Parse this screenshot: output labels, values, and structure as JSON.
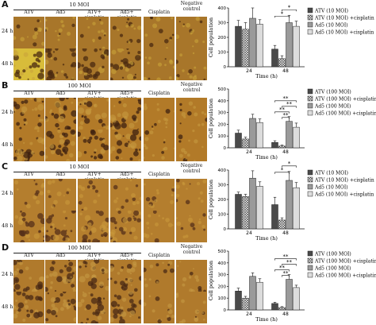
{
  "columns": [
    "ATV",
    "Ad5",
    "ATV+ cisplatin",
    "Ad5+ cisplatin",
    "Cisplatin",
    "Negative control"
  ],
  "rows": [
    "24 h",
    "48 h"
  ],
  "panels": [
    {
      "letter": "A",
      "moi": "10 MOI",
      "tone": {
        "bg": "#a8762a",
        "dark": "#4a2a10",
        "alt": "#c9a43a"
      },
      "chart_legend": [
        "ATV (10 MOI)",
        "ATV (10 MOI) +cisplatin",
        "Ad5 (10 MOI)",
        "Ad5 (10 MOI) +cisplatin"
      ]
    },
    {
      "letter": "B",
      "moi": "100 MOI",
      "tone": {
        "bg": "#b27a28",
        "dark": "#3e2210",
        "alt": "#c79a40"
      },
      "chart_legend": [
        "ATV (100 MOI)",
        "ATV (100 MOI) +cisplatin",
        "Ad5 (100 MOI)",
        "Ad5 (100 MOI) +cisplatin"
      ]
    },
    {
      "letter": "C",
      "moi": "10 MOI",
      "tone": {
        "bg": "#b47e2e",
        "dark": "#55301a",
        "alt": "#c99a3c"
      },
      "chart_legend": [
        "ATV (10 MOI)",
        "ATV (10 MOI) +cisplatin",
        "Ad5 (10 MOI)",
        "Ad5 (10 MOI) +cisplatin"
      ]
    },
    {
      "letter": "D",
      "moi": "100 MOI",
      "tone": {
        "bg": "#b07a2c",
        "dark": "#4a2a14",
        "alt": "#c69a44"
      },
      "chart_legend": [
        "ATV (100 MOI)",
        "ATV (100 MOI) +cisplatin",
        "Ad5 (100 MOI)",
        "Ad5 (100 MOI) +cisplatin"
      ]
    }
  ],
  "chart_data": [
    {
      "type": "bar",
      "categories": [
        "24",
        "48"
      ],
      "xlabel": "Time (h)",
      "ylabel": "Cell population",
      "ylim": [
        0,
        400
      ],
      "yticks": [
        0,
        100,
        200,
        300,
        400
      ],
      "series": [
        {
          "name": "ATV (10 MOI)",
          "values": [
            275,
            120
          ]
        },
        {
          "name": "ATV (10 MOI) +cisplatin",
          "values": [
            255,
            55
          ]
        },
        {
          "name": "Ad5 (10 MOI)",
          "values": [
            330,
            300
          ]
        },
        {
          "name": "Ad5 (10 MOI) +cisplatin",
          "values": [
            290,
            275
          ]
        }
      ],
      "errors": [
        [
          40,
          25
        ],
        [
          45,
          20
        ],
        [
          70,
          50
        ],
        [
          30,
          35
        ]
      ],
      "significance": [
        "*",
        "*"
      ]
    },
    {
      "type": "bar",
      "categories": [
        "24",
        "48"
      ],
      "xlabel": "Time (h)",
      "ylabel": "Cell population",
      "ylim": [
        0,
        500
      ],
      "yticks": [
        0,
        100,
        200,
        300,
        400,
        500
      ],
      "series": [
        {
          "name": "ATV (100 MOI)",
          "values": [
            125,
            45
          ]
        },
        {
          "name": "ATV (100 MOI) +cisplatin",
          "values": [
            75,
            15
          ]
        },
        {
          "name": "Ad5 (100 MOI)",
          "values": [
            250,
            225
          ]
        },
        {
          "name": "Ad5 (100 MOI) +cisplatin",
          "values": [
            215,
            175
          ]
        }
      ],
      "errors": [
        [
          25,
          15
        ],
        [
          15,
          8
        ],
        [
          35,
          40
        ],
        [
          30,
          35
        ]
      ],
      "significance": [
        "**",
        "**",
        "**",
        "**"
      ]
    },
    {
      "type": "bar",
      "categories": [
        "24",
        "48"
      ],
      "xlabel": "Time (h)",
      "ylabel": "Cell population",
      "ylim": [
        0,
        400
      ],
      "yticks": [
        0,
        100,
        200,
        300,
        400
      ],
      "series": [
        {
          "name": "ATV (10 MOI)",
          "values": [
            235,
            165
          ]
        },
        {
          "name": "ATV (10 MOI) +cisplatin",
          "values": [
            220,
            60
          ]
        },
        {
          "name": "Ad5 (10 MOI)",
          "values": [
            345,
            330
          ]
        },
        {
          "name": "Ad5 (10 MOI) +cisplatin",
          "values": [
            290,
            280
          ]
        }
      ],
      "errors": [
        [
          15,
          50
        ],
        [
          15,
          15
        ],
        [
          50,
          60
        ],
        [
          30,
          35
        ]
      ],
      "significance": [
        "*",
        "*"
      ]
    },
    {
      "type": "bar",
      "categories": [
        "24",
        "48"
      ],
      "xlabel": "Time (h)",
      "ylabel": "Cell population",
      "ylim": [
        0,
        500
      ],
      "yticks": [
        0,
        100,
        200,
        300,
        400,
        500
      ],
      "series": [
        {
          "name": "ATV (100 MOI)",
          "values": [
            160,
            55
          ]
        },
        {
          "name": "ATV (100 MOI) +cisplatin",
          "values": [
            100,
            20
          ]
        },
        {
          "name": "Ad5 (100 MOI)",
          "values": [
            285,
            260
          ]
        },
        {
          "name": "Ad5 (100 MOI) +cisplatin",
          "values": [
            235,
            190
          ]
        }
      ],
      "errors": [
        [
          25,
          10
        ],
        [
          15,
          8
        ],
        [
          30,
          40
        ],
        [
          30,
          20
        ]
      ],
      "significance": [
        "**",
        "**",
        "**",
        "**"
      ]
    }
  ]
}
